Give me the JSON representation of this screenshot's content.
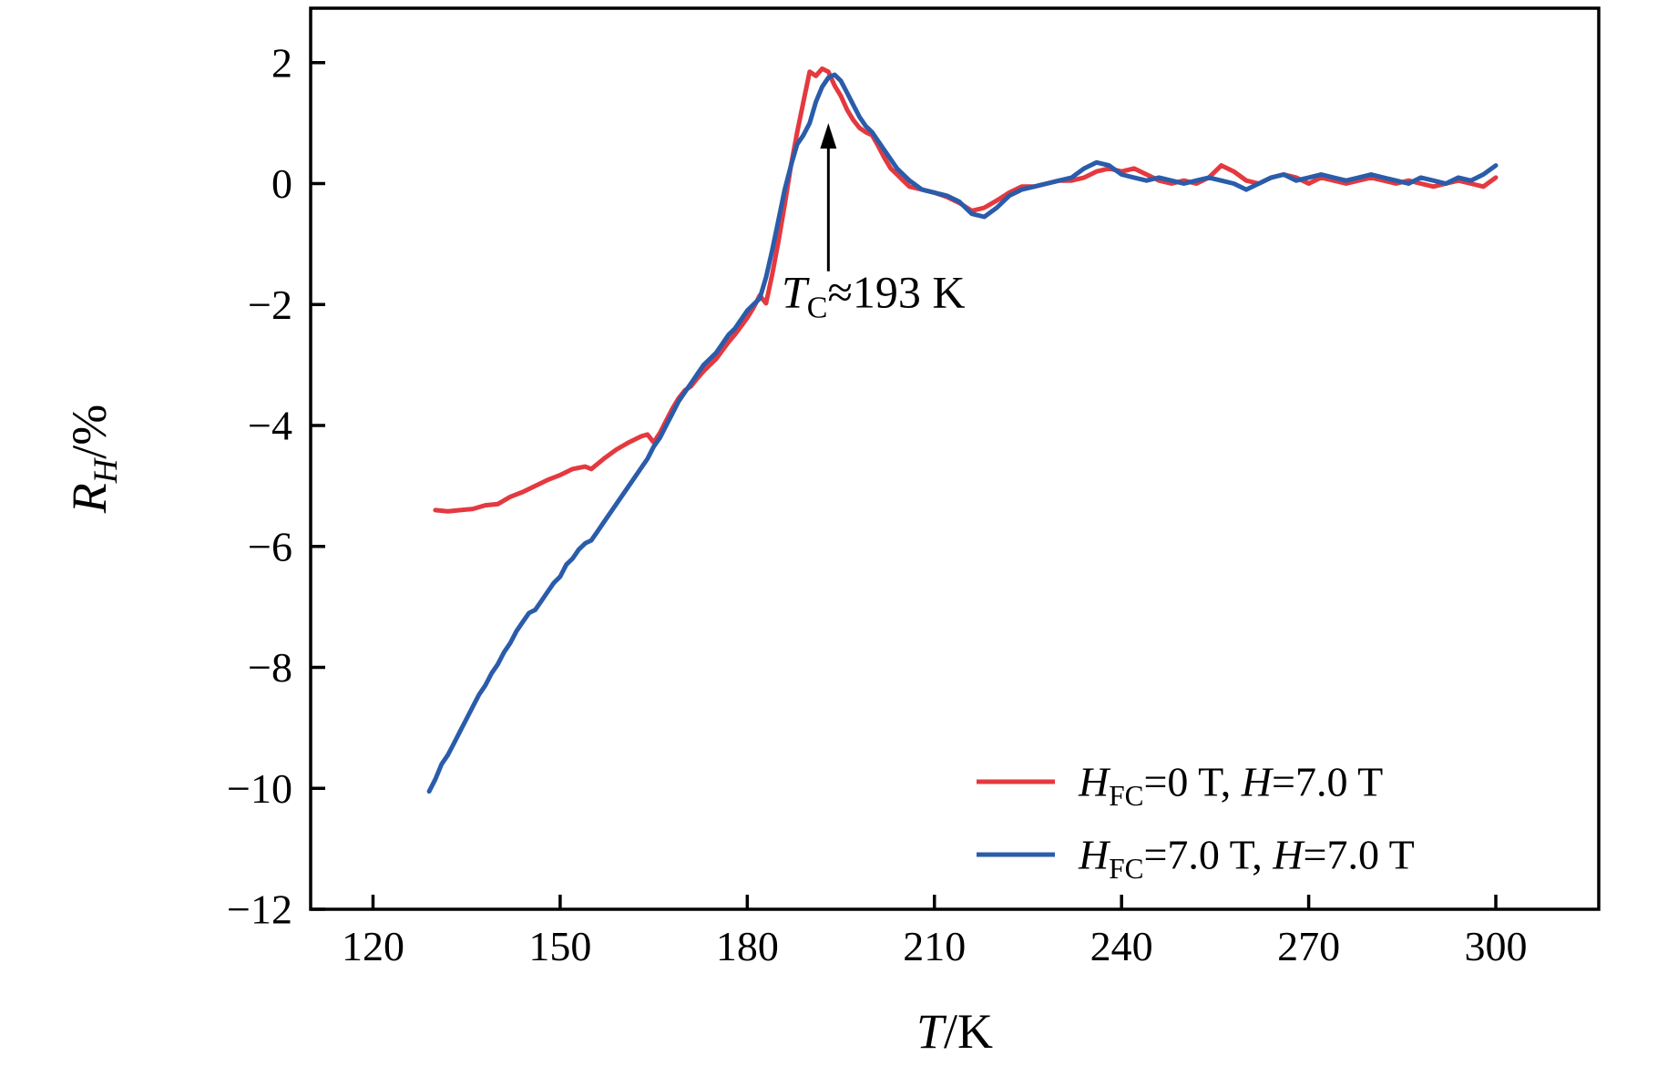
{
  "figure": {
    "background": "#ffffff",
    "axis_color": "#000000"
  },
  "chart_data": {
    "type": "line",
    "title": "",
    "xlabel": "T/K",
    "ylabel": "R_H/%",
    "xlim": [
      110,
      316.5
    ],
    "ylim": [
      -12,
      2.9
    ],
    "x_ticks": [
      120,
      150,
      180,
      210,
      240,
      270,
      300
    ],
    "y_ticks": [
      -12,
      -10,
      -8,
      -6,
      -4,
      -2,
      0,
      2
    ],
    "grid": false,
    "legend_position": "lower-right",
    "annotation": {
      "text": "T_C≈193 K",
      "arrow_x": 193,
      "arrow_y_from": -1.45,
      "arrow_y_to": 1.0,
      "text_x": 185.5,
      "text_y": -2.05
    },
    "series": [
      {
        "name": "H_FC=0 T, H=7.0 T",
        "color": "#e4393f",
        "points": [
          [
            130,
            -5.4
          ],
          [
            132,
            -5.42
          ],
          [
            134,
            -5.4
          ],
          [
            136,
            -5.38
          ],
          [
            138,
            -5.32
          ],
          [
            140,
            -5.3
          ],
          [
            142,
            -5.18
          ],
          [
            144,
            -5.1
          ],
          [
            146,
            -5.0
          ],
          [
            148,
            -4.9
          ],
          [
            150,
            -4.82
          ],
          [
            152,
            -4.72
          ],
          [
            154,
            -4.68
          ],
          [
            155,
            -4.72
          ],
          [
            157,
            -4.55
          ],
          [
            159,
            -4.4
          ],
          [
            161,
            -4.28
          ],
          [
            163,
            -4.18
          ],
          [
            164,
            -4.15
          ],
          [
            165,
            -4.28
          ],
          [
            166,
            -4.12
          ],
          [
            167,
            -3.92
          ],
          [
            168,
            -3.72
          ],
          [
            169,
            -3.55
          ],
          [
            170,
            -3.42
          ],
          [
            171,
            -3.35
          ],
          [
            172,
            -3.22
          ],
          [
            173,
            -3.1
          ],
          [
            174,
            -3.0
          ],
          [
            175,
            -2.9
          ],
          [
            176,
            -2.76
          ],
          [
            177,
            -2.62
          ],
          [
            178,
            -2.5
          ],
          [
            179,
            -2.36
          ],
          [
            180,
            -2.22
          ],
          [
            181,
            -2.05
          ],
          [
            182,
            -1.85
          ],
          [
            183,
            -1.98
          ],
          [
            184,
            -1.5
          ],
          [
            185,
            -0.95
          ],
          [
            186,
            -0.35
          ],
          [
            187,
            0.3
          ],
          [
            188,
            0.85
          ],
          [
            189,
            1.35
          ],
          [
            190,
            1.85
          ],
          [
            191,
            1.78
          ],
          [
            192,
            1.9
          ],
          [
            193,
            1.85
          ],
          [
            194,
            1.62
          ],
          [
            195,
            1.45
          ],
          [
            196,
            1.22
          ],
          [
            197,
            1.05
          ],
          [
            198,
            0.92
          ],
          [
            199,
            0.85
          ],
          [
            200,
            0.8
          ],
          [
            201,
            0.62
          ],
          [
            202,
            0.42
          ],
          [
            203,
            0.25
          ],
          [
            204,
            0.15
          ],
          [
            205,
            0.05
          ],
          [
            206,
            -0.05
          ],
          [
            208,
            -0.1
          ],
          [
            210,
            -0.15
          ],
          [
            212,
            -0.22
          ],
          [
            214,
            -0.32
          ],
          [
            216,
            -0.45
          ],
          [
            218,
            -0.4
          ],
          [
            220,
            -0.28
          ],
          [
            222,
            -0.15
          ],
          [
            224,
            -0.05
          ],
          [
            226,
            -0.05
          ],
          [
            228,
            0
          ],
          [
            230,
            0.05
          ],
          [
            232,
            0.05
          ],
          [
            234,
            0.1
          ],
          [
            236,
            0.2
          ],
          [
            238,
            0.25
          ],
          [
            240,
            0.2
          ],
          [
            242,
            0.25
          ],
          [
            244,
            0.15
          ],
          [
            246,
            0.05
          ],
          [
            248,
            0
          ],
          [
            250,
            0.05
          ],
          [
            252,
            0
          ],
          [
            254,
            0.1
          ],
          [
            256,
            0.3
          ],
          [
            258,
            0.2
          ],
          [
            260,
            0.05
          ],
          [
            262,
            0
          ],
          [
            264,
            0.1
          ],
          [
            266,
            0.15
          ],
          [
            268,
            0.1
          ],
          [
            270,
            0
          ],
          [
            272,
            0.1
          ],
          [
            274,
            0.05
          ],
          [
            276,
            0
          ],
          [
            278,
            0.05
          ],
          [
            280,
            0.1
          ],
          [
            282,
            0.05
          ],
          [
            284,
            0
          ],
          [
            286,
            0.05
          ],
          [
            288,
            0
          ],
          [
            290,
            -0.05
          ],
          [
            292,
            0
          ],
          [
            294,
            0.05
          ],
          [
            296,
            0
          ],
          [
            298,
            -0.05
          ],
          [
            300,
            0.1
          ]
        ]
      },
      {
        "name": "H_FC=7.0 T, H=7.0 T",
        "color": "#2a5caa",
        "points": [
          [
            129,
            -10.05
          ],
          [
            130,
            -9.85
          ],
          [
            131,
            -9.6
          ],
          [
            132,
            -9.45
          ],
          [
            133,
            -9.25
          ],
          [
            134,
            -9.05
          ],
          [
            135,
            -8.85
          ],
          [
            136,
            -8.65
          ],
          [
            137,
            -8.45
          ],
          [
            138,
            -8.3
          ],
          [
            139,
            -8.1
          ],
          [
            140,
            -7.95
          ],
          [
            141,
            -7.75
          ],
          [
            142,
            -7.6
          ],
          [
            143,
            -7.4
          ],
          [
            144,
            -7.25
          ],
          [
            145,
            -7.1
          ],
          [
            146,
            -7.05
          ],
          [
            147,
            -6.9
          ],
          [
            148,
            -6.75
          ],
          [
            149,
            -6.6
          ],
          [
            150,
            -6.5
          ],
          [
            151,
            -6.3
          ],
          [
            152,
            -6.2
          ],
          [
            153,
            -6.05
          ],
          [
            154,
            -5.95
          ],
          [
            155,
            -5.9
          ],
          [
            156,
            -5.75
          ],
          [
            157,
            -5.6
          ],
          [
            158,
            -5.45
          ],
          [
            159,
            -5.3
          ],
          [
            160,
            -5.15
          ],
          [
            161,
            -5.0
          ],
          [
            162,
            -4.85
          ],
          [
            163,
            -4.7
          ],
          [
            164,
            -4.55
          ],
          [
            165,
            -4.35
          ],
          [
            166,
            -4.2
          ],
          [
            167,
            -4.0
          ],
          [
            168,
            -3.8
          ],
          [
            169,
            -3.6
          ],
          [
            170,
            -3.45
          ],
          [
            171,
            -3.3
          ],
          [
            172,
            -3.15
          ],
          [
            173,
            -3.0
          ],
          [
            174,
            -2.9
          ],
          [
            175,
            -2.8
          ],
          [
            176,
            -2.65
          ],
          [
            177,
            -2.5
          ],
          [
            178,
            -2.4
          ],
          [
            179,
            -2.25
          ],
          [
            180,
            -2.1
          ],
          [
            181,
            -2.0
          ],
          [
            182,
            -1.9
          ],
          [
            183,
            -1.55
          ],
          [
            184,
            -1.1
          ],
          [
            185,
            -0.6
          ],
          [
            186,
            -0.1
          ],
          [
            187,
            0.3
          ],
          [
            188,
            0.65
          ],
          [
            189,
            0.8
          ],
          [
            190,
            1.0
          ],
          [
            191,
            1.35
          ],
          [
            192,
            1.6
          ],
          [
            193,
            1.75
          ],
          [
            194,
            1.8
          ],
          [
            195,
            1.7
          ],
          [
            196,
            1.5
          ],
          [
            197,
            1.3
          ],
          [
            198,
            1.1
          ],
          [
            199,
            0.95
          ],
          [
            200,
            0.85
          ],
          [
            201,
            0.7
          ],
          [
            202,
            0.55
          ],
          [
            203,
            0.4
          ],
          [
            204,
            0.25
          ],
          [
            205,
            0.15
          ],
          [
            206,
            0.05
          ],
          [
            208,
            -0.1
          ],
          [
            210,
            -0.15
          ],
          [
            212,
            -0.2
          ],
          [
            214,
            -0.3
          ],
          [
            216,
            -0.5
          ],
          [
            218,
            -0.55
          ],
          [
            220,
            -0.4
          ],
          [
            222,
            -0.2
          ],
          [
            224,
            -0.1
          ],
          [
            226,
            -0.05
          ],
          [
            228,
            0
          ],
          [
            230,
            0.05
          ],
          [
            232,
            0.1
          ],
          [
            234,
            0.25
          ],
          [
            236,
            0.35
          ],
          [
            238,
            0.3
          ],
          [
            240,
            0.15
          ],
          [
            242,
            0.1
          ],
          [
            244,
            0.05
          ],
          [
            246,
            0.1
          ],
          [
            248,
            0.05
          ],
          [
            250,
            0
          ],
          [
            252,
            0.05
          ],
          [
            254,
            0.1
          ],
          [
            256,
            0.05
          ],
          [
            258,
            0
          ],
          [
            260,
            -0.1
          ],
          [
            262,
            0
          ],
          [
            264,
            0.1
          ],
          [
            266,
            0.15
          ],
          [
            268,
            0.05
          ],
          [
            270,
            0.1
          ],
          [
            272,
            0.15
          ],
          [
            274,
            0.1
          ],
          [
            276,
            0.05
          ],
          [
            278,
            0.1
          ],
          [
            280,
            0.15
          ],
          [
            282,
            0.1
          ],
          [
            284,
            0.05
          ],
          [
            286,
            0
          ],
          [
            288,
            0.1
          ],
          [
            290,
            0.05
          ],
          [
            292,
            0
          ],
          [
            294,
            0.1
          ],
          [
            296,
            0.05
          ],
          [
            298,
            0.15
          ],
          [
            300,
            0.3
          ]
        ]
      }
    ]
  },
  "rich_labels": {
    "ylabel": [
      {
        "t": "R",
        "style": "italic"
      },
      {
        "t": "H",
        "style": "italic-sub"
      },
      {
        "t": "/%",
        "style": "normal"
      }
    ],
    "xlabel": [
      {
        "t": "T",
        "style": "italic"
      },
      {
        "t": "/K",
        "style": "normal"
      }
    ],
    "annotation": [
      {
        "t": "T",
        "style": "italic"
      },
      {
        "t": "C",
        "style": "sub"
      },
      {
        "t": "≈193 K",
        "style": "normal"
      }
    ],
    "legend": [
      [
        {
          "t": "H",
          "style": "italic"
        },
        {
          "t": "FC",
          "style": "sub"
        },
        {
          "t": "=0 T, ",
          "style": "normal"
        },
        {
          "t": "H",
          "style": "italic"
        },
        {
          "t": "=7.0 T",
          "style": "normal"
        }
      ],
      [
        {
          "t": "H",
          "style": "italic"
        },
        {
          "t": "FC",
          "style": "sub"
        },
        {
          "t": "=7.0 T, ",
          "style": "normal"
        },
        {
          "t": "H",
          "style": "italic"
        },
        {
          "t": "=7.0 T",
          "style": "normal"
        }
      ]
    ]
  }
}
